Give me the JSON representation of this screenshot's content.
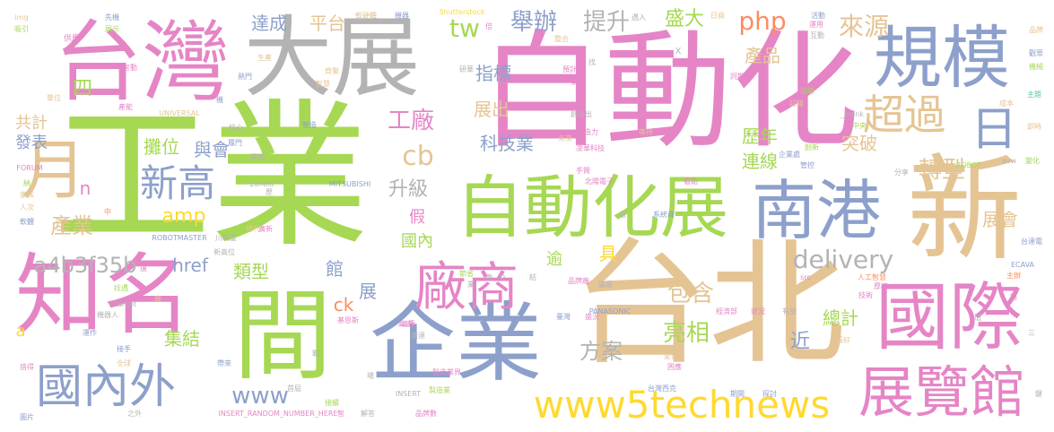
{
  "palette": {
    "pink": "#e585c6",
    "green": "#a6d853",
    "tan": "#e5c494",
    "blue": "#8da0cb",
    "gray": "#b3b3b3",
    "orange": "#fc8d62",
    "teal": "#66c2a5",
    "yellow": "#ffd92f"
  },
  "words": [
    {
      "text": "工業"
    },
    {
      "text": "自動化"
    },
    {
      "text": "台北"
    },
    {
      "text": "台灣"
    },
    {
      "text": "大展"
    },
    {
      "text": "新"
    },
    {
      "text": "自動化展"
    },
    {
      "text": "南港"
    },
    {
      "text": "知名"
    },
    {
      "text": "間"
    },
    {
      "text": "企業"
    },
    {
      "text": "國際"
    },
    {
      "text": "規模"
    },
    {
      "text": "展覽館"
    },
    {
      "text": "國內外"
    },
    {
      "text": "廠商"
    },
    {
      "text": "www5technews"
    },
    {
      "text": "超過"
    },
    {
      "text": "月"
    },
    {
      "text": "日"
    },
    {
      "text": "新高"
    },
    {
      "text": "delivery"
    },
    {
      "text": "轉型"
    },
    {
      "text": "php"
    },
    {
      "text": "來源"
    },
    {
      "text": "產品"
    },
    {
      "text": "舉辦"
    },
    {
      "text": "提升"
    },
    {
      "text": "tw"
    },
    {
      "text": "盛大"
    },
    {
      "text": "達成"
    },
    {
      "text": "平台"
    },
    {
      "text": "指標"
    },
    {
      "text": "展出"
    },
    {
      "text": "科技業"
    },
    {
      "text": "工廠"
    },
    {
      "text": "cb"
    },
    {
      "text": "升級"
    },
    {
      "text": "攤位"
    },
    {
      "text": "與會"
    },
    {
      "text": "amp"
    },
    {
      "text": "產業"
    },
    {
      "text": "a4b3f35b"
    },
    {
      "text": "href"
    },
    {
      "text": "類型"
    },
    {
      "text": "www"
    },
    {
      "text": "集結"
    },
    {
      "text": "包含"
    },
    {
      "text": "亮相"
    },
    {
      "text": "方案"
    },
    {
      "text": "總計"
    },
    {
      "text": "歷年"
    },
    {
      "text": "連線"
    },
    {
      "text": "突破"
    },
    {
      "text": "展會"
    },
    {
      "text": "四"
    },
    {
      "text": "共計"
    },
    {
      "text": "發表"
    },
    {
      "text": "n"
    },
    {
      "text": "國內"
    },
    {
      "text": "ck"
    },
    {
      "text": "a"
    },
    {
      "text": "館"
    },
    {
      "text": "展"
    },
    {
      "text": "逾"
    },
    {
      "text": "具"
    },
    {
      "text": "假"
    },
    {
      "text": "近"
    },
    {
      "text": "Shutterstock"
    },
    {
      "text": "img"
    },
    {
      "text": "吸引"
    },
    {
      "text": "供應"
    },
    {
      "text": "先機"
    },
    {
      "text": "展示"
    },
    {
      "text": "軟硬體"
    },
    {
      "text": "機器"
    },
    {
      "text": "倍"
    },
    {
      "text": "日商"
    },
    {
      "text": "活動"
    },
    {
      "text": "品牌"
    },
    {
      "text": "觀眾"
    },
    {
      "text": "機械"
    },
    {
      "text": "主題"
    },
    {
      "text": "即時"
    },
    {
      "text": "成本"
    },
    {
      "text": "記錄"
    },
    {
      "text": "協助"
    },
    {
      "text": "UNIVERSAL"
    },
    {
      "text": "FORUM"
    },
    {
      "text": "ROBOT"
    },
    {
      "text": "avw"
    },
    {
      "text": "MITSUBISHI"
    },
    {
      "text": "ROBOTMASTER"
    },
    {
      "text": "川崎重"
    },
    {
      "text": "台達電"
    },
    {
      "text": "ECAVA"
    },
    {
      "text": "主辦"
    },
    {
      "text": "PANASONIC"
    },
    {
      "text": "INSERT"
    },
    {
      "text": "INSERT_RANDOM_NUMBER_HERE"
    },
    {
      "text": "台灣西克"
    },
    {
      "text": "凌華科技"
    },
    {
      "text": "北陽電子"
    },
    {
      "text": "系統商"
    },
    {
      "text": "人工智慧"
    },
    {
      "text": "品牌數"
    },
    {
      "text": "之外"
    },
    {
      "text": "圖片"
    },
    {
      "text": "_blank"
    },
    {
      "text": "zoneid"
    },
    {
      "text": "target"
    },
    {
      "text": "src"
    },
    {
      "text": "創新"
    },
    {
      "text": "智慧"
    },
    {
      "text": "智造"
    },
    {
      "text": "核心"
    },
    {
      "text": "製造業"
    },
    {
      "text": "未來"
    },
    {
      "text": "手臂"
    },
    {
      "text": "看點"
    },
    {
      "text": "管控"
    },
    {
      "text": "企業處"
    },
    {
      "text": "中央"
    },
    {
      "text": "變化"
    },
    {
      "text": "分享"
    },
    {
      "text": "接手"
    },
    {
      "text": "全球"
    },
    {
      "text": "機器人"
    },
    {
      "text": "運作"
    },
    {
      "text": "軟體"
    },
    {
      "text": "家族"
    },
    {
      "text": "人次"
    },
    {
      "text": "捨得"
    },
    {
      "text": "首屆"
    },
    {
      "text": "接續"
    },
    {
      "text": "帶來"
    },
    {
      "text": "基恩斯"
    },
    {
      "text": "高達"
    },
    {
      "text": "廣達"
    },
    {
      "text": "愛普生"
    },
    {
      "text": "臺灣"
    },
    {
      "text": "期間"
    },
    {
      "text": "探討"
    },
    {
      "text": "技術"
    },
    {
      "text": "狀況"
    },
    {
      "text": "有望"
    },
    {
      "text": "經濟部"
    },
    {
      "text": "盛況"
    },
    {
      "text": "厚植"
    },
    {
      "text": "熱門"
    },
    {
      "text": "同期"
    },
    {
      "text": "預計"
    },
    {
      "text": "解惑"
    },
    {
      "text": "研華"
    },
    {
      "text": "生產"
    },
    {
      "text": "齊聚"
    },
    {
      "text": "整合"
    },
    {
      "text": "遇入"
    },
    {
      "text": "互動"
    },
    {
      "text": "結"
    },
    {
      "text": "D"
    },
    {
      "text": "鍵"
    },
    {
      "text": "三"
    },
    {
      "text": "高速"
    },
    {
      "text": "實戰"
    },
    {
      "text": "廣新"
    },
    {
      "text": "等待"
    },
    {
      "text": "品牌廠"
    },
    {
      "text": "製造力"
    },
    {
      "text": "創新出"
    },
    {
      "text": "找"
    },
    {
      "text": "益"
    },
    {
      "text": "節省"
    },
    {
      "text": "論壇"
    },
    {
      "text": "微"
    },
    {
      "text": "智動"
    },
    {
      "text": "單位"
    },
    {
      "text": "產能"
    },
    {
      "text": "特代"
    },
    {
      "text": "戰"
    },
    {
      "text": "業"
    },
    {
      "text": "中"
    },
    {
      "text": "新高位"
    },
    {
      "text": "場"
    },
    {
      "text": "解答"
    },
    {
      "text": "製造業界"
    },
    {
      "text": "拴遇"
    },
    {
      "text": "X"
    },
    {
      "text": "履門"
    },
    {
      "text": "歷"
    },
    {
      "text": "遠"
    },
    {
      "text": "困應"
    },
    {
      "text": "看好"
    },
    {
      "text": "運用"
    },
    {
      "text": "路"
    },
    {
      "text": "納"
    },
    {
      "text": "廠"
    },
    {
      "text": "機"
    },
    {
      "text": "智"
    },
    {
      "text": "造"
    }
  ]
}
